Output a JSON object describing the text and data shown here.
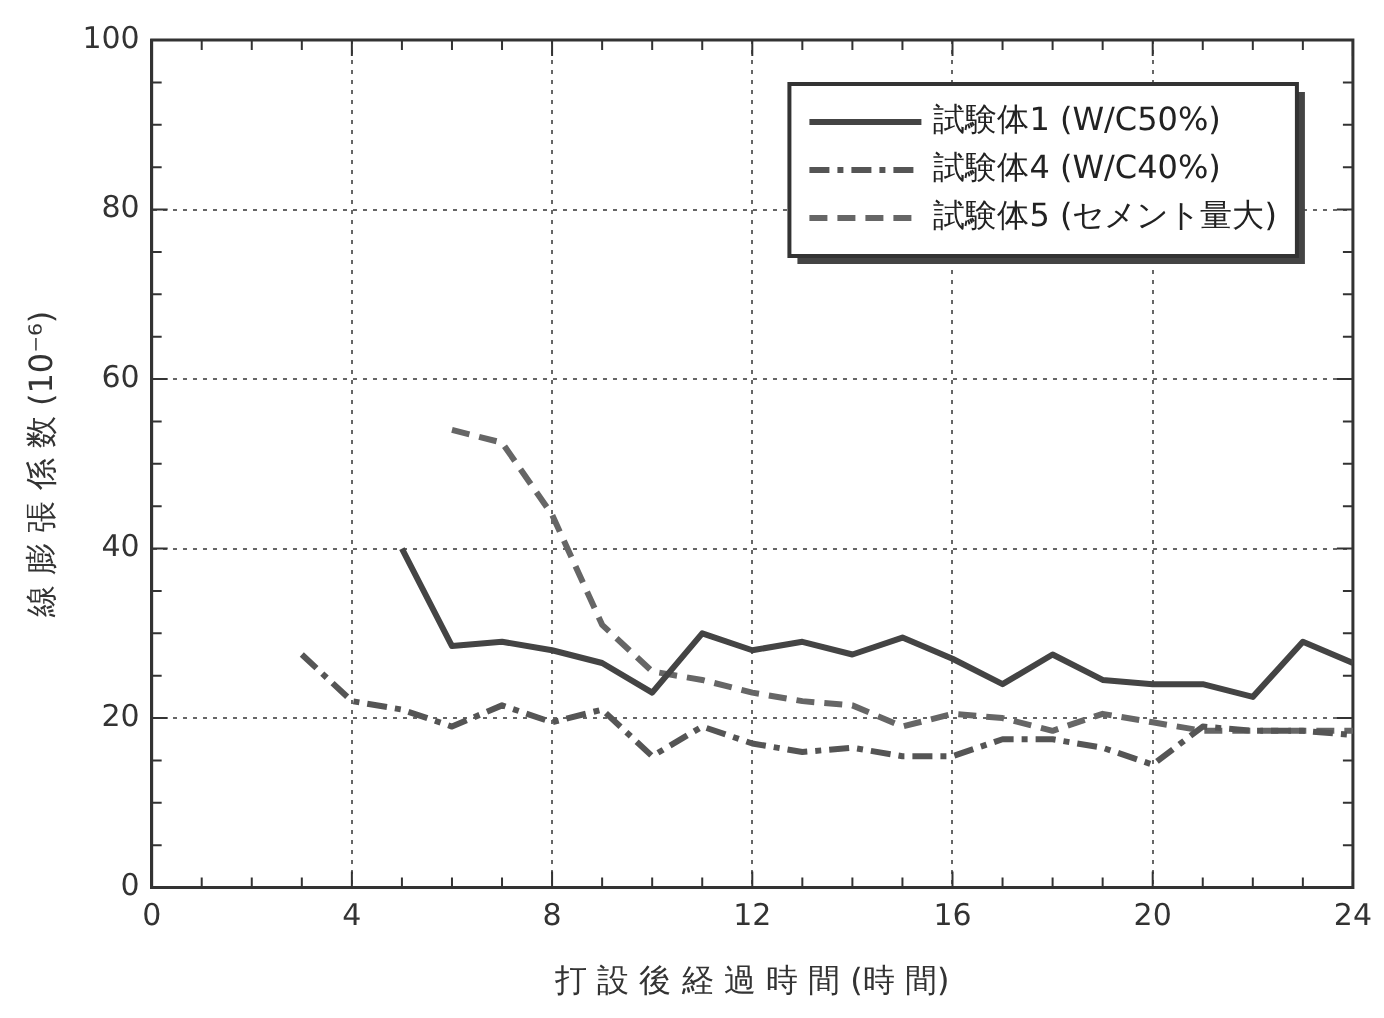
{
  "chart_data": {
    "type": "line",
    "xlabel": "打 設 後 経 過 時 間 (時 間)",
    "ylabel": "線 膨 張 係 数 (10⁻⁶)",
    "xlim": [
      0,
      24
    ],
    "xticks": [
      0,
      4,
      8,
      12,
      16,
      20,
      24
    ],
    "ylim": [
      0,
      100
    ],
    "yticks": [
      0,
      20,
      40,
      60,
      80,
      100
    ],
    "grid": true,
    "legend": "top right",
    "marker": "none",
    "series": [
      {
        "name": "試験体1 (W/C50%)",
        "color": "#444444",
        "line_style": "solid",
        "x": [
          5,
          6,
          7,
          8,
          9,
          10,
          11,
          12,
          13,
          14,
          15,
          16,
          17,
          18,
          19,
          20,
          21,
          22,
          23,
          24
        ],
        "values": [
          40,
          28.5,
          29,
          28,
          26.5,
          23,
          30,
          28,
          29,
          27.5,
          29.5,
          27,
          24,
          27.5,
          24.5,
          24,
          24,
          22.5,
          29,
          26.5
        ]
      },
      {
        "name": "試験体4 (W/C40%)",
        "color": "#555555",
        "line_style": "dashdot",
        "x": [
          3,
          4,
          5,
          6,
          7,
          8,
          9,
          10,
          11,
          12,
          13,
          14,
          15,
          16,
          17,
          18,
          19,
          20,
          21,
          22,
          23,
          24
        ],
        "values": [
          27.5,
          22,
          21,
          19,
          21.5,
          19.5,
          21,
          15.5,
          19,
          17,
          16,
          16.5,
          15.5,
          15.5,
          17.5,
          17.5,
          16.5,
          14.5,
          19,
          18.5,
          18.5,
          18
        ]
      },
      {
        "name": "試験体5 (セメント量大)",
        "color": "#666666",
        "line_style": "dashed",
        "x": [
          6,
          7,
          8,
          9,
          10,
          11,
          12,
          13,
          14,
          15,
          16,
          17,
          18,
          19,
          20,
          21,
          22,
          23,
          24
        ],
        "values": [
          54,
          52.5,
          44,
          31,
          25.5,
          24.5,
          23,
          22,
          21.5,
          19,
          20.5,
          20,
          18.5,
          20.5,
          19.5,
          18.5,
          18.5,
          18.5,
          18.5
        ]
      }
    ]
  }
}
